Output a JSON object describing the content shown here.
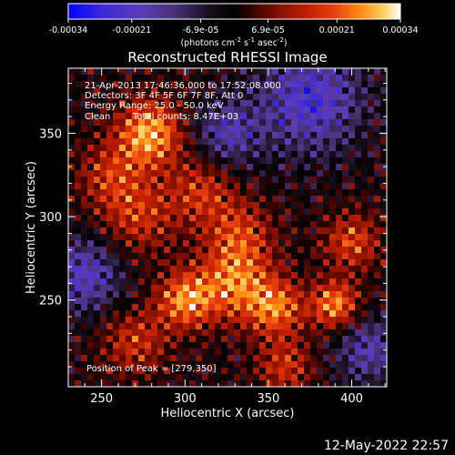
{
  "chart_data": {
    "type": "heatmap",
    "title": "Reconstructed RHESSI Image",
    "xlabel": "Heliocentric X (arcsec)",
    "ylabel": "Heliocentric Y (arcsec)",
    "xlim": [
      230,
      421
    ],
    "ylim": [
      198,
      389
    ],
    "x_ticks": [
      250,
      300,
      350,
      400
    ],
    "y_ticks": [
      250,
      300,
      350
    ],
    "colorbar": {
      "ticks": [
        "-0.00034",
        "-0.00021",
        "-6.9e-05",
        "6.9e-05",
        "0.00021",
        "0.00034"
      ],
      "range": [
        -0.00034,
        0.00034
      ],
      "unit_text": "(photons cm",
      "unit_sup1": "-2",
      "unit_mid": " s",
      "unit_sup2": "-1",
      "unit_mid2": " asec",
      "unit_sup3": "-2",
      "unit_end": ")",
      "colors_low": [
        "#0000ff",
        "#5c3cb8",
        "#4a3078",
        "#1a1020"
      ],
      "colors_high": [
        "#000000",
        "#6a0a00",
        "#b01c00",
        "#e84010",
        "#ff8c10",
        "#ffd060",
        "#ffffff"
      ]
    },
    "annotations": {
      "time": "21-Apr-2013 17:46:36.000 to 17:52:08.000",
      "detectors": "Detectors: 3F 4F 5F 6F 7F 8F, Att 0",
      "energy": "Energy Range: 25.0 - 50.0 keV",
      "clean": "Clean",
      "counts": "Total counts: 8.47E+03",
      "peak": "Position of Peak = [279,350]"
    },
    "hotspots": [
      {
        "x": 279,
        "y": 350,
        "amp": 1.0,
        "sigma": 14
      },
      {
        "x": 272,
        "y": 300,
        "amp": 0.55,
        "sigma": 16
      },
      {
        "x": 255,
        "y": 325,
        "amp": 0.5,
        "sigma": 14
      },
      {
        "x": 310,
        "y": 315,
        "amp": 0.55,
        "sigma": 14
      },
      {
        "x": 333,
        "y": 290,
        "amp": 0.55,
        "sigma": 14
      },
      {
        "x": 300,
        "y": 250,
        "amp": 0.85,
        "sigma": 12
      },
      {
        "x": 330,
        "y": 260,
        "amp": 0.8,
        "sigma": 16
      },
      {
        "x": 355,
        "y": 245,
        "amp": 0.75,
        "sigma": 12
      },
      {
        "x": 390,
        "y": 247,
        "amp": 0.9,
        "sigma": 10
      },
      {
        "x": 400,
        "y": 285,
        "amp": 0.65,
        "sigma": 12
      },
      {
        "x": 360,
        "y": 210,
        "amp": 0.55,
        "sigma": 12
      },
      {
        "x": 270,
        "y": 225,
        "amp": 0.55,
        "sigma": 14
      }
    ],
    "coldspots": [
      {
        "x": 375,
        "y": 370,
        "amp": 0.8,
        "sigma": 22
      },
      {
        "x": 240,
        "y": 265,
        "amp": 0.7,
        "sigma": 16
      },
      {
        "x": 410,
        "y": 220,
        "amp": 0.6,
        "sigma": 14
      },
      {
        "x": 325,
        "y": 350,
        "amp": 0.6,
        "sigma": 14
      }
    ]
  },
  "footer": {
    "timestamp": "12-May-2022 22:57"
  }
}
